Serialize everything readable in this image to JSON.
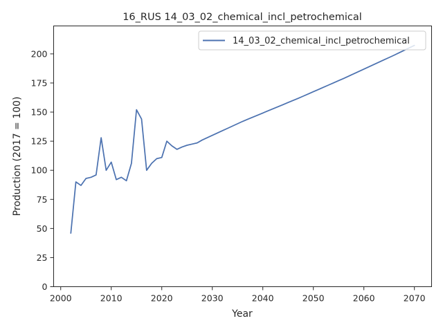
{
  "chart_data": {
    "type": "line",
    "title": "16_RUS 14_03_02_chemical_incl_petrochemical",
    "xlabel": "Year",
    "ylabel": "Production (2017 = 100)",
    "xlim": [
      1998.6,
      2073.4
    ],
    "ylim": [
      0,
      224
    ],
    "xticks": [
      2000,
      2010,
      2020,
      2030,
      2040,
      2050,
      2060,
      2070
    ],
    "yticks": [
      0,
      25,
      50,
      75,
      100,
      125,
      150,
      175,
      200
    ],
    "grid": false,
    "legend_position": "top-right",
    "series": [
      {
        "name": "14_03_02_chemical_incl_petrochemical",
        "color": "#4c72b0",
        "x": [
          2002,
          2003,
          2004,
          2005,
          2006,
          2007,
          2008,
          2009,
          2010,
          2011,
          2012,
          2013,
          2014,
          2015,
          2016,
          2017,
          2018,
          2019,
          2020,
          2021,
          2022,
          2023,
          2024,
          2025,
          2026,
          2027,
          2028,
          2029,
          2030,
          2031,
          2032,
          2033,
          2034,
          2035,
          2036,
          2037,
          2038,
          2039,
          2040,
          2041,
          2042,
          2043,
          2044,
          2045,
          2046,
          2047,
          2048,
          2049,
          2050,
          2051,
          2052,
          2053,
          2054,
          2055,
          2056,
          2057,
          2058,
          2059,
          2060,
          2061,
          2062,
          2063,
          2064,
          2065,
          2066,
          2067,
          2068,
          2069,
          2070
        ],
        "values": [
          46,
          90,
          87,
          93,
          94,
          96,
          128,
          100,
          107,
          92,
          94,
          91,
          106,
          152,
          144,
          100,
          106,
          110,
          111,
          125,
          121,
          118,
          120,
          121.5,
          122.5,
          123.5,
          126,
          128,
          130,
          132,
          134,
          136,
          138,
          140,
          142,
          143.8,
          145.6,
          147.4,
          149.2,
          151,
          152.8,
          154.6,
          156.4,
          158.2,
          160,
          161.8,
          163.7,
          165.6,
          167.5,
          169.4,
          171.3,
          173.2,
          175.1,
          177,
          178.9,
          180.9,
          182.9,
          184.9,
          186.9,
          188.9,
          190.9,
          192.9,
          194.9,
          196.9,
          198.9,
          201,
          203.1,
          205.2,
          207.3
        ]
      }
    ]
  }
}
